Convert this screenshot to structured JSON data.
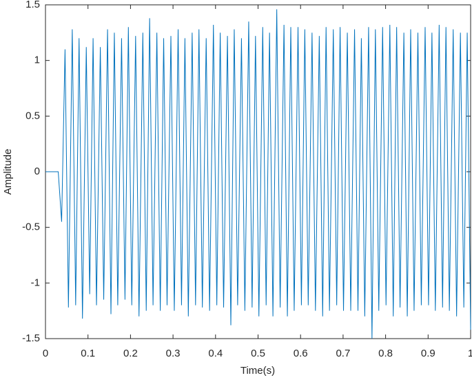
{
  "chart_data": {
    "type": "line",
    "x_label": "Time(s)",
    "y_label": "Amplitude",
    "color": "#0072bd",
    "x": [
      0,
      0.03,
      0.038,
      0.046,
      0.054,
      0.063,
      0.071,
      0.079,
      0.087,
      0.096,
      0.104,
      0.112,
      0.12,
      0.129,
      0.137,
      0.146,
      0.154,
      0.162,
      0.17,
      0.179,
      0.187,
      0.195,
      0.203,
      0.212,
      0.22,
      0.229,
      0.237,
      0.245,
      0.253,
      0.262,
      0.27,
      0.278,
      0.286,
      0.295,
      0.303,
      0.312,
      0.32,
      0.328,
      0.336,
      0.345,
      0.353,
      0.361,
      0.369,
      0.378,
      0.386,
      0.395,
      0.403,
      0.411,
      0.419,
      0.428,
      0.436,
      0.444,
      0.452,
      0.461,
      0.469,
      0.478,
      0.486,
      0.494,
      0.502,
      0.511,
      0.519,
      0.527,
      0.535,
      0.544,
      0.552,
      0.561,
      0.569,
      0.577,
      0.585,
      0.594,
      0.602,
      0.61,
      0.618,
      0.627,
      0.635,
      0.644,
      0.652,
      0.66,
      0.668,
      0.677,
      0.685,
      0.693,
      0.701,
      0.71,
      0.718,
      0.727,
      0.735,
      0.743,
      0.751,
      0.76,
      0.768,
      0.776,
      0.784,
      0.793,
      0.801,
      0.81,
      0.818,
      0.826,
      0.834,
      0.843,
      0.851,
      0.859,
      0.867,
      0.876,
      0.884,
      0.893,
      0.901,
      0.909,
      0.917,
      0.926,
      0.934,
      0.942,
      0.95,
      0.959,
      0.967,
      0.976,
      0.984,
      0.992,
      1.0
    ],
    "values": [
      0,
      0,
      -0.45,
      1.1,
      -1.22,
      1.28,
      -1.2,
      1.2,
      -1.32,
      1.12,
      -1.1,
      1.2,
      -1.2,
      1.12,
      -1.15,
      1.28,
      -1.28,
      1.25,
      -1.2,
      1.2,
      -1.15,
      1.3,
      -1.2,
      1.22,
      -1.3,
      1.25,
      -1.25,
      1.38,
      -1.2,
      1.25,
      -1.25,
      1.2,
      -1.2,
      1.22,
      -1.25,
      1.28,
      -1.2,
      1.2,
      -1.3,
      1.25,
      -1.2,
      1.28,
      -1.22,
      1.2,
      -1.25,
      1.32,
      -1.2,
      1.25,
      -1.22,
      1.22,
      -1.38,
      1.28,
      -1.2,
      1.2,
      -1.25,
      1.35,
      -1.22,
      1.22,
      -1.3,
      1.3,
      -1.2,
      1.25,
      -1.3,
      1.46,
      -1.22,
      1.32,
      -1.3,
      1.3,
      -1.25,
      1.3,
      -1.2,
      1.28,
      -1.2,
      1.25,
      -1.25,
      1.22,
      -1.3,
      1.3,
      -1.25,
      1.28,
      -1.2,
      1.3,
      -1.25,
      1.25,
      -1.25,
      1.28,
      -1.25,
      1.2,
      -1.3,
      1.3,
      -1.5,
      1.28,
      -1.25,
      1.3,
      -1.2,
      1.32,
      -1.3,
      1.3,
      -1.22,
      1.25,
      -1.3,
      1.28,
      -1.25,
      1.25,
      -1.2,
      1.3,
      -1.2,
      1.25,
      -1.25,
      1.32,
      -1.22,
      1.3,
      -1.25,
      1.28,
      -1.3,
      1.25,
      -1.22,
      1.25,
      -1.42
    ],
    "xlim": [
      0,
      1
    ],
    "xticks": [
      0,
      0.1,
      0.2,
      0.3,
      0.4,
      0.5,
      0.6,
      0.7,
      0.8,
      0.9,
      1
    ],
    "ylim": [
      -1.5,
      1.5
    ],
    "yticks": [
      -1.5,
      -1,
      -0.5,
      0,
      0.5,
      1,
      1.5
    ]
  }
}
